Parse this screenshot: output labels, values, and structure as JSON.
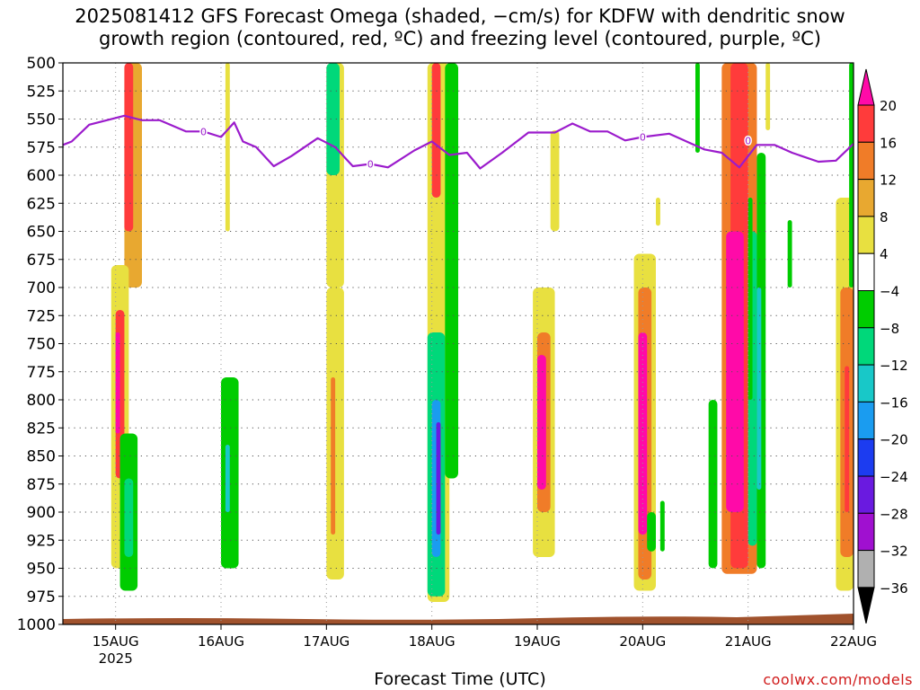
{
  "title_lines": [
    "2025081412 GFS Forecast Omega (shaded, −cm/s) for KDFW with dendritic snow",
    "growth region (contoured, red, ºC) and freezing level (contoured, purple, ºC)"
  ],
  "credit": "coolwx.com/models",
  "colors": {
    "freezing_level": "#9b1bcc",
    "ground": "#a0522d",
    "grid": "#555555",
    "scale": [
      {
        "range": [
          20,
          24
        ],
        "color": "#ff0aa8"
      },
      {
        "range": [
          16,
          20
        ],
        "color": "#ff3b3b"
      },
      {
        "range": [
          12,
          16
        ],
        "color": "#f07c28"
      },
      {
        "range": [
          8,
          12
        ],
        "color": "#e8a830"
      },
      {
        "range": [
          4,
          8
        ],
        "color": "#e8e040"
      },
      {
        "range": [
          -4,
          4
        ],
        "color": "#ffffff"
      },
      {
        "range": [
          -8,
          -4
        ],
        "color": "#00cc00"
      },
      {
        "range": [
          -12,
          -8
        ],
        "color": "#00d87a"
      },
      {
        "range": [
          -16,
          -12
        ],
        "color": "#18c8c8"
      },
      {
        "range": [
          -20,
          -16
        ],
        "color": "#1a9cf0"
      },
      {
        "range": [
          -24,
          -20
        ],
        "color": "#1c3cf0"
      },
      {
        "range": [
          -28,
          -24
        ],
        "color": "#6a1ae0"
      },
      {
        "range": [
          -32,
          -28
        ],
        "color": "#a010d0"
      },
      {
        "range": [
          -36,
          -32
        ],
        "color": "#b0b0b0"
      },
      {
        "range": [
          -40,
          -36
        ],
        "color": "#000000"
      }
    ]
  },
  "chart_data": {
    "type": "heatmap",
    "xlabel": "Forecast Time (UTC)",
    "xlim": [
      "2025-08-14T12",
      "2025-08-22T00"
    ],
    "ylim": [
      1000,
      500
    ],
    "ylabel": "",
    "grid": true,
    "x_ticks": [
      {
        "t": "2025-08-15T00",
        "label": "15AUG",
        "sub": "2025"
      },
      {
        "t": "2025-08-16T00",
        "label": "16AUG"
      },
      {
        "t": "2025-08-17T00",
        "label": "17AUG"
      },
      {
        "t": "2025-08-18T00",
        "label": "18AUG"
      },
      {
        "t": "2025-08-19T00",
        "label": "19AUG"
      },
      {
        "t": "2025-08-20T00",
        "label": "20AUG"
      },
      {
        "t": "2025-08-21T00",
        "label": "21AUG"
      },
      {
        "t": "2025-08-22T00",
        "label": "22AUG"
      }
    ],
    "y_ticks": [
      500,
      525,
      550,
      575,
      600,
      625,
      650,
      675,
      700,
      725,
      750,
      775,
      800,
      825,
      850,
      875,
      900,
      925,
      950,
      975,
      1000
    ],
    "colorbar_ticks": [
      "20",
      "16",
      "12",
      "8",
      "4",
      "−4",
      "−8",
      "−12",
      "−16",
      "−20",
      "−24",
      "−28",
      "−32",
      "−36"
    ],
    "freezing_level": {
      "label": "0",
      "points": [
        [
          "2025-08-14T12",
          573
        ],
        [
          "2025-08-14T14",
          570
        ],
        [
          "2025-08-14T18",
          555
        ],
        [
          "2025-08-14T22",
          551
        ],
        [
          "2025-08-15T02",
          547
        ],
        [
          "2025-08-15T06",
          551
        ],
        [
          "2025-08-15T10",
          551
        ],
        [
          "2025-08-15T16",
          561
        ],
        [
          "2025-08-15T20",
          561
        ],
        [
          "2025-08-16T00",
          566
        ],
        [
          "2025-08-16T03",
          553
        ],
        [
          "2025-08-16T05",
          570
        ],
        [
          "2025-08-16T08",
          575
        ],
        [
          "2025-08-16T12",
          592
        ],
        [
          "2025-08-16T16",
          583
        ],
        [
          "2025-08-16T22",
          567
        ],
        [
          "2025-08-17T02",
          575
        ],
        [
          "2025-08-17T06",
          592
        ],
        [
          "2025-08-17T10",
          590
        ],
        [
          "2025-08-17T14",
          593
        ],
        [
          "2025-08-17T20",
          578
        ],
        [
          "2025-08-18T00",
          570
        ],
        [
          "2025-08-18T04",
          582
        ],
        [
          "2025-08-18T08",
          580
        ],
        [
          "2025-08-18T11",
          594
        ],
        [
          "2025-08-18T16",
          580
        ],
        [
          "2025-08-18T22",
          562
        ],
        [
          "2025-08-19T04",
          562
        ],
        [
          "2025-08-19T08",
          554
        ],
        [
          "2025-08-19T12",
          561
        ],
        [
          "2025-08-19T16",
          561
        ],
        [
          "2025-08-19T20",
          569
        ],
        [
          "2025-08-20T00",
          566
        ],
        [
          "2025-08-20T06",
          563
        ],
        [
          "2025-08-20T10",
          570
        ],
        [
          "2025-08-20T14",
          577
        ],
        [
          "2025-08-20T18",
          580
        ],
        [
          "2025-08-20T22",
          593
        ],
        [
          "2025-08-21T02",
          573
        ],
        [
          "2025-08-21T06",
          573
        ],
        [
          "2025-08-21T10",
          580
        ],
        [
          "2025-08-21T16",
          588
        ],
        [
          "2025-08-21T20",
          587
        ],
        [
          "2025-08-22T00",
          572
        ]
      ]
    },
    "omega_regions": [
      {
        "t": [
          "2025-08-15T02",
          "2025-08-15T06"
        ],
        "p": [
          500,
          700
        ],
        "value": 10
      },
      {
        "t": [
          "2025-08-15T02",
          "2025-08-15T04"
        ],
        "p": [
          500,
          650
        ],
        "value": 16
      },
      {
        "t": [
          "2025-08-14T23",
          "2025-08-15T03"
        ],
        "p": [
          680,
          950
        ],
        "value": 6
      },
      {
        "t": [
          "2025-08-15T00",
          "2025-08-15T02"
        ],
        "p": [
          720,
          870
        ],
        "value": 18
      },
      {
        "t": [
          "2025-08-15T00",
          "2025-08-15T01"
        ],
        "p": [
          740,
          830
        ],
        "value": 22
      },
      {
        "t": [
          "2025-08-15T01",
          "2025-08-15T05"
        ],
        "p": [
          830,
          970
        ],
        "value": -6
      },
      {
        "t": [
          "2025-08-15T02",
          "2025-08-15T04"
        ],
        "p": [
          870,
          940
        ],
        "value": -10
      },
      {
        "t": [
          "2025-08-16T00",
          "2025-08-16T04"
        ],
        "p": [
          780,
          950
        ],
        "value": -6
      },
      {
        "t": [
          "2025-08-16T01",
          "2025-08-16T02"
        ],
        "p": [
          840,
          900
        ],
        "value": -14
      },
      {
        "t": [
          "2025-08-16T01",
          "2025-08-16T02"
        ],
        "p": [
          500,
          650
        ],
        "value": 6
      },
      {
        "t": [
          "2025-08-17T00",
          "2025-08-17T04"
        ],
        "p": [
          500,
          700
        ],
        "value": 6
      },
      {
        "t": [
          "2025-08-17T00",
          "2025-08-17T03"
        ],
        "p": [
          500,
          600
        ],
        "value": -10
      },
      {
        "t": [
          "2025-08-17T00",
          "2025-08-17T04"
        ],
        "p": [
          700,
          960
        ],
        "value": 6
      },
      {
        "t": [
          "2025-08-17T01",
          "2025-08-17T02"
        ],
        "p": [
          780,
          920
        ],
        "value": 12
      },
      {
        "t": [
          "2025-08-17T23",
          "2025-08-18T04"
        ],
        "p": [
          500,
          980
        ],
        "value": 6
      },
      {
        "t": [
          "2025-08-18T00",
          "2025-08-18T02"
        ],
        "p": [
          500,
          620
        ],
        "value": 17
      },
      {
        "t": [
          "2025-08-17T23",
          "2025-08-18T03"
        ],
        "p": [
          740,
          975
        ],
        "value": -10
      },
      {
        "t": [
          "2025-08-18T00",
          "2025-08-18T02"
        ],
        "p": [
          800,
          940
        ],
        "value": -18
      },
      {
        "t": [
          "2025-08-18T01",
          "2025-08-18T02"
        ],
        "p": [
          820,
          920
        ],
        "value": -26
      },
      {
        "t": [
          "2025-08-18T03",
          "2025-08-18T06"
        ],
        "p": [
          500,
          870
        ],
        "value": -6
      },
      {
        "t": [
          "2025-08-18T23",
          "2025-08-19T04"
        ],
        "p": [
          700,
          940
        ],
        "value": 6
      },
      {
        "t": [
          "2025-08-19T00",
          "2025-08-19T03"
        ],
        "p": [
          740,
          900
        ],
        "value": 14
      },
      {
        "t": [
          "2025-08-19T00",
          "2025-08-19T02"
        ],
        "p": [
          760,
          880
        ],
        "value": 22
      },
      {
        "t": [
          "2025-08-19T03",
          "2025-08-19T05"
        ],
        "p": [
          560,
          650
        ],
        "value": 6
      },
      {
        "t": [
          "2025-08-19T22",
          "2025-08-20T03"
        ],
        "p": [
          670,
          970
        ],
        "value": 6
      },
      {
        "t": [
          "2025-08-19T23",
          "2025-08-20T02"
        ],
        "p": [
          700,
          960
        ],
        "value": 14
      },
      {
        "t": [
          "2025-08-19T23",
          "2025-08-20T01"
        ],
        "p": [
          740,
          920
        ],
        "value": 22
      },
      {
        "t": [
          "2025-08-20T01",
          "2025-08-20T03"
        ],
        "p": [
          900,
          935
        ],
        "value": -6
      },
      {
        "t": [
          "2025-08-20T03",
          "2025-08-20T04"
        ],
        "p": [
          620,
          645
        ],
        "value": 6
      },
      {
        "t": [
          "2025-08-20T04",
          "2025-08-20T05"
        ],
        "p": [
          890,
          935
        ],
        "value": -6
      },
      {
        "t": [
          "2025-08-20T12",
          "2025-08-20T13"
        ],
        "p": [
          500,
          580
        ],
        "value": -6
      },
      {
        "t": [
          "2025-08-20T15",
          "2025-08-20T17"
        ],
        "p": [
          800,
          950
        ],
        "value": -6
      },
      {
        "t": [
          "2025-08-20T18",
          "2025-08-21T02"
        ],
        "p": [
          500,
          955
        ],
        "value": 14
      },
      {
        "t": [
          "2025-08-20T20",
          "2025-08-21T00"
        ],
        "p": [
          500,
          950
        ],
        "value": 18
      },
      {
        "t": [
          "2025-08-20T19",
          "2025-08-20T23"
        ],
        "p": [
          650,
          900
        ],
        "value": 22
      },
      {
        "t": [
          "2025-08-21T00",
          "2025-08-21T02"
        ],
        "p": [
          650,
          930
        ],
        "value": -12
      },
      {
        "t": [
          "2025-08-21T00",
          "2025-08-21T01"
        ],
        "p": [
          620,
          800
        ],
        "value": -6
      },
      {
        "t": [
          "2025-08-21T02",
          "2025-08-21T04"
        ],
        "p": [
          580,
          950
        ],
        "value": -8
      },
      {
        "t": [
          "2025-08-21T02",
          "2025-08-21T03"
        ],
        "p": [
          700,
          880
        ],
        "value": -14
      },
      {
        "t": [
          "2025-08-21T04",
          "2025-08-21T05"
        ],
        "p": [
          500,
          560
        ],
        "value": 6
      },
      {
        "t": [
          "2025-08-21T09",
          "2025-08-21T10"
        ],
        "p": [
          640,
          700
        ],
        "value": -6
      },
      {
        "t": [
          "2025-08-21T20",
          "2025-08-22T00"
        ],
        "p": [
          620,
          970
        ],
        "value": 6
      },
      {
        "t": [
          "2025-08-21T21",
          "2025-08-22T00"
        ],
        "p": [
          700,
          940
        ],
        "value": 12
      },
      {
        "t": [
          "2025-08-21T22",
          "2025-08-21T23"
        ],
        "p": [
          770,
          900
        ],
        "value": 18
      },
      {
        "t": [
          "2025-08-21T23",
          "2025-08-22T00"
        ],
        "p": [
          500,
          700
        ],
        "value": -8
      }
    ]
  }
}
